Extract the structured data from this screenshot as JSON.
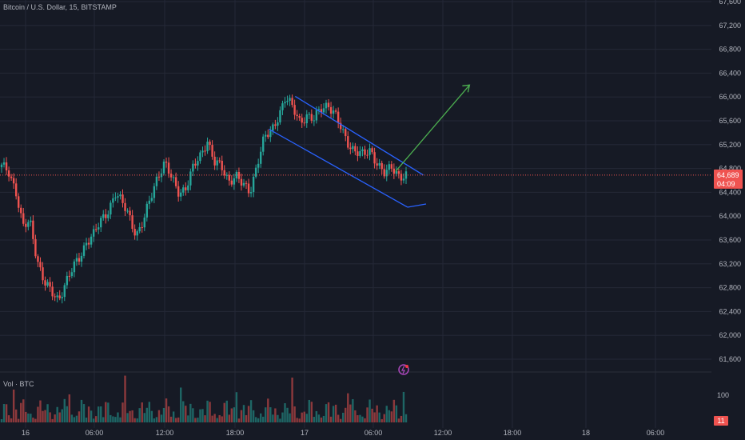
{
  "header": {
    "title": "Bitcoin / U.S. Dollar, 15, BITSTAMP"
  },
  "volume_pane": {
    "label": "Vol · BTC",
    "value_label": "11"
  },
  "price_badge": {
    "price": "64,689",
    "countdown": "04:09"
  },
  "colors": {
    "background": "#161a25",
    "up": "#26a69a",
    "down": "#ef5350",
    "channel": "#2962ff",
    "arrow": "#4caf50",
    "grid": "#242836"
  },
  "chart_data": {
    "type": "candlestick",
    "symbol": "BTC/USD",
    "interval": "15",
    "exchange": "BITSTAMP",
    "ylim": [
      61200,
      67600
    ],
    "y_ticks": [
      61600,
      62000,
      62400,
      62800,
      63200,
      63600,
      64000,
      64400,
      64800,
      65200,
      65600,
      66000,
      66400,
      66800,
      67200,
      67600
    ],
    "y_tick_labels": [
      "61,600",
      "62,000",
      "62,400",
      "62,800",
      "63,200",
      "63,600",
      "64,000",
      "64,400",
      "64,800",
      "65,200",
      "65,600",
      "66,000",
      "66,400",
      "66,800",
      "67,200",
      "67,600"
    ],
    "x_ticks": [
      "16",
      "06:00",
      "12:00",
      "18:00",
      "17",
      "06:00",
      "12:00",
      "18:00",
      "18",
      "06:00"
    ],
    "last_price": 64689,
    "volume_ticks": [
      {
        "value": 100,
        "label": "100"
      }
    ],
    "price_path": [
      64820,
      64750,
      64450,
      63800,
      63900,
      63300,
      62900,
      62700,
      62600,
      62900,
      63100,
      63300,
      63600,
      63700,
      63900,
      64100,
      64400,
      64200,
      64000,
      63700,
      63900,
      64300,
      64700,
      64900,
      64600,
      64400,
      64500,
      64800,
      65000,
      65300,
      64900,
      64800,
      64600,
      64700,
      64500,
      64400,
      64900,
      65300,
      65400,
      65700,
      66000,
      65800,
      65600,
      65700,
      65600,
      65800,
      65900,
      65700,
      65400,
      65200,
      65100,
      65000,
      65100,
      64900,
      64700,
      64800,
      64700,
      64689
    ],
    "annotations": {
      "channel_upper": [
        {
          "t": 0.415,
          "p": 66010
        },
        {
          "t": 0.595,
          "p": 64690
        }
      ],
      "channel_lower": [
        {
          "t": 0.378,
          "p": 65460
        },
        {
          "t": 0.573,
          "p": 64150
        }
      ],
      "forecast_arrow": [
        {
          "t": 0.556,
          "p": 64750
        },
        {
          "t": 0.66,
          "p": 66200
        }
      ]
    }
  }
}
